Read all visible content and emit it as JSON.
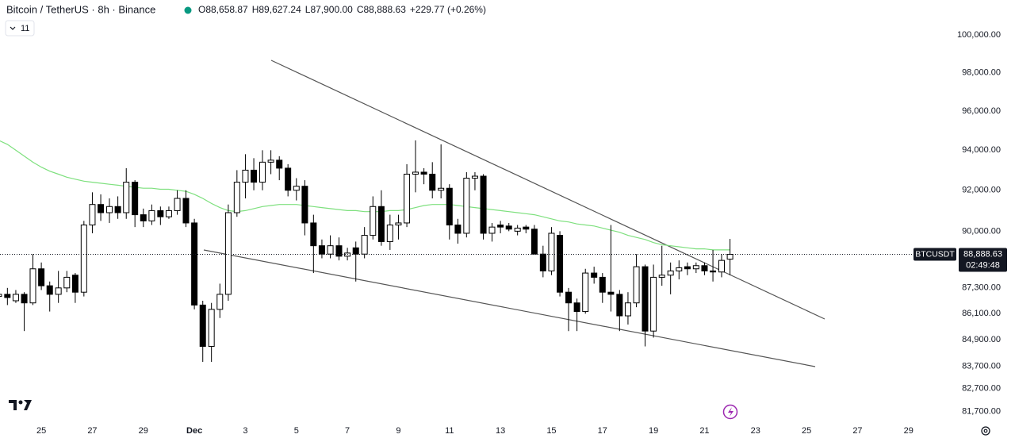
{
  "chart_data": {
    "type": "candlestick",
    "title": "Bitcoin / TetherUS · 8h · Binance",
    "ohlc_labels": [
      "O88,658.87",
      "H89,627.24",
      "L87,900.00",
      "C88,888.63",
      "+229.77 (+0.26%)"
    ],
    "indicator_count": "11",
    "symbol": "BTCUSDT",
    "last_price": {
      "value": 88888.63,
      "label": "88,888.63"
    },
    "countdown": "02:49:48",
    "log_scale": true,
    "up_color": "#ffffff",
    "down_color": "#000000",
    "x": [
      23.33,
      23.67,
      24,
      24.33,
      24.67,
      25,
      25.33,
      25.67,
      26,
      26.33,
      26.67,
      27,
      27.33,
      27.67,
      28,
      28.33,
      28.67,
      29,
      29.33,
      29.67,
      30,
      30.33,
      30.67,
      31,
      31.33,
      31.67,
      32,
      32.33,
      32.67,
      33,
      33.33,
      33.67,
      34,
      34.33,
      34.67,
      35,
      35.33,
      35.67,
      36,
      36.33,
      36.67,
      37,
      37.33,
      37.67,
      38,
      38.33,
      38.67,
      39,
      39.33,
      39.67,
      40,
      40.33,
      40.67,
      41,
      41.33,
      41.67,
      42,
      42.33,
      42.67,
      43,
      43.33,
      43.67,
      44,
      44.33,
      44.67,
      45,
      45.33,
      45.67,
      46,
      46.33,
      46.67,
      47,
      47.33,
      47.67,
      48,
      48.33,
      48.67,
      49,
      49.33,
      49.67,
      50,
      50.33,
      50.67,
      51,
      51.33,
      51.67,
      52
    ],
    "open": [
      86900,
      87000,
      86700,
      87000,
      86600,
      88200,
      87400,
      87000,
      87300,
      87900,
      87100,
      90300,
      91300,
      90900,
      91200,
      90900,
      92400,
      90800,
      90500,
      91000,
      90700,
      91000,
      91600,
      90400,
      86500,
      84600,
      86300,
      87000,
      90900,
      92400,
      93000,
      92400,
      93400,
      93500,
      93100,
      92000,
      92200,
      90400,
      89300,
      88900,
      89300,
      88800,
      89200,
      88900,
      89800,
      91200,
      89500,
      90300,
      90400,
      92800,
      92900,
      92800,
      92000,
      92100,
      90300,
      89900,
      92600,
      92700,
      89900,
      90300,
      90250,
      90000,
      90200,
      90100,
      88900,
      88100,
      89800,
      87100,
      86600,
      86200,
      88000,
      87800,
      87100,
      87000,
      86000,
      86600,
      88300,
      85300,
      87800,
      87900,
      88100,
      88300,
      88200,
      88350,
      88100,
      88050,
      88658.87
    ],
    "high": [
      87100,
      87300,
      87200,
      87100,
      88900,
      88500,
      87600,
      88100,
      88100,
      88000,
      90500,
      91900,
      91800,
      91600,
      91700,
      93100,
      92500,
      91100,
      91300,
      91200,
      91200,
      92000,
      92000,
      90600,
      86700,
      86600,
      87500,
      91300,
      93000,
      93800,
      93600,
      94000,
      94000,
      93700,
      93300,
      92600,
      92500,
      90800,
      89600,
      89800,
      89700,
      89200,
      89500,
      90200,
      91700,
      92000,
      90800,
      90800,
      93300,
      94500,
      93100,
      93400,
      94300,
      92300,
      90600,
      92900,
      92900,
      92800,
      90400,
      90500,
      90400,
      90300,
      90300,
      90300,
      89300,
      90200,
      90000,
      87300,
      86800,
      88200,
      88300,
      88000,
      90300,
      87200,
      87100,
      88900,
      88400,
      88400,
      89300,
      88500,
      88600,
      88500,
      88500,
      88500,
      89100,
      88900,
      89627.24
    ],
    "low": [
      85800,
      86500,
      86600,
      85300,
      86500,
      87200,
      86200,
      86600,
      87100,
      86600,
      86900,
      89900,
      90500,
      90400,
      90600,
      90600,
      90200,
      90200,
      90300,
      90300,
      90600,
      90800,
      90200,
      86300,
      83900,
      83900,
      85900,
      86700,
      90700,
      91600,
      92000,
      92000,
      92800,
      92500,
      91700,
      91500,
      89800,
      88000,
      88700,
      88700,
      88600,
      88600,
      87600,
      88700,
      89600,
      89300,
      89100,
      89600,
      90200,
      91900,
      92300,
      91600,
      91600,
      89600,
      89400,
      89700,
      92000,
      89600,
      89500,
      89900,
      90000,
      89800,
      89900,
      88900,
      87800,
      87900,
      86900,
      85300,
      85300,
      86100,
      87500,
      86600,
      86200,
      85300,
      85600,
      86400,
      84600,
      85000,
      87400,
      87000,
      87700,
      87900,
      88000,
      87900,
      87600,
      87800,
      87900
    ],
    "close": [
      87000,
      86850,
      87000,
      86600,
      88200,
      87400,
      87000,
      87300,
      87800,
      87100,
      90300,
      91300,
      90900,
      91200,
      90900,
      92400,
      90800,
      90500,
      91000,
      90700,
      91000,
      91600,
      90400,
      86500,
      84600,
      86300,
      87000,
      90900,
      92400,
      93000,
      92400,
      93400,
      93500,
      93100,
      92000,
      92200,
      90400,
      89300,
      88900,
      89300,
      88800,
      88950,
      88900,
      89800,
      91200,
      89500,
      90300,
      90400,
      92800,
      92900,
      92800,
      92000,
      92100,
      90300,
      89900,
      92600,
      92700,
      89900,
      90200,
      90200,
      90100,
      90150,
      90100,
      88900,
      88100,
      89900,
      87100,
      86600,
      86200,
      88000,
      87800,
      87100,
      87000,
      86000,
      86600,
      88300,
      85300,
      87800,
      87900,
      88100,
      88250,
      88200,
      88350,
      88100,
      88050,
      88600,
      88888.63
    ],
    "ma": {
      "color": "#7ee07e",
      "values": [
        94500,
        94300,
        94000,
        93700,
        93400,
        93150,
        92950,
        92800,
        92650,
        92550,
        92450,
        92400,
        92350,
        92300,
        92250,
        92200,
        92150,
        92100,
        92100,
        92050,
        92050,
        92000,
        91950,
        91800,
        91600,
        91350,
        91150,
        91000,
        90950,
        91000,
        91100,
        91200,
        91250,
        91300,
        91300,
        91300,
        91250,
        91200,
        91150,
        91100,
        91050,
        91000,
        91000,
        90950,
        90950,
        90950,
        91000,
        91000,
        91050,
        91150,
        91250,
        91300,
        91300,
        91300,
        91250,
        91200,
        91150,
        91100,
        91050,
        91000,
        90950,
        90900,
        90850,
        90800,
        90700,
        90600,
        90500,
        90450,
        90350,
        90300,
        90250,
        90150,
        90050,
        89950,
        89800,
        89700,
        89600,
        89450,
        89350,
        89300,
        89250,
        89200,
        89150,
        89150,
        89100,
        89100,
        89100
      ]
    },
    "xlim": [
      23.38,
      60.53
    ],
    "xticks": [
      25,
      27,
      29,
      {
        "value": 31,
        "label": "Dec"
      },
      {
        "value": 33,
        "label": "3"
      },
      {
        "value": 35,
        "label": "5"
      },
      {
        "value": 37,
        "label": "7"
      },
      {
        "value": 39,
        "label": "9"
      },
      {
        "value": 41,
        "label": "11"
      },
      {
        "value": 43,
        "label": "13"
      },
      {
        "value": 45,
        "label": "15"
      },
      {
        "value": 47,
        "label": "17"
      },
      {
        "value": 49,
        "label": "19"
      },
      {
        "value": 51,
        "label": "21"
      },
      {
        "value": 53,
        "label": "23"
      },
      {
        "value": 55,
        "label": "25"
      },
      {
        "value": 57,
        "label": "27"
      },
      {
        "value": 59,
        "label": "29"
      }
    ],
    "ylim": [
      80950,
      101900
    ],
    "yticks": [
      {
        "value": 100000,
        "label": "100,000.00"
      },
      {
        "value": 98000,
        "label": "98,000.00"
      },
      {
        "value": 96000,
        "label": "96,000.00"
      },
      {
        "value": 94000,
        "label": "94,000.00"
      },
      {
        "value": 92000,
        "label": "92,000.00"
      },
      {
        "value": 90000,
        "label": "90,000.00"
      },
      {
        "value": 87300,
        "label": "87,300.00"
      },
      {
        "value": 86100,
        "label": "86,100.00"
      },
      {
        "value": 84900,
        "label": "84,900.00"
      },
      {
        "value": 83700,
        "label": "83,700.00"
      },
      {
        "value": 82700,
        "label": "82,700.00"
      },
      {
        "value": 81700,
        "label": "81,700.00"
      }
    ]
  }
}
